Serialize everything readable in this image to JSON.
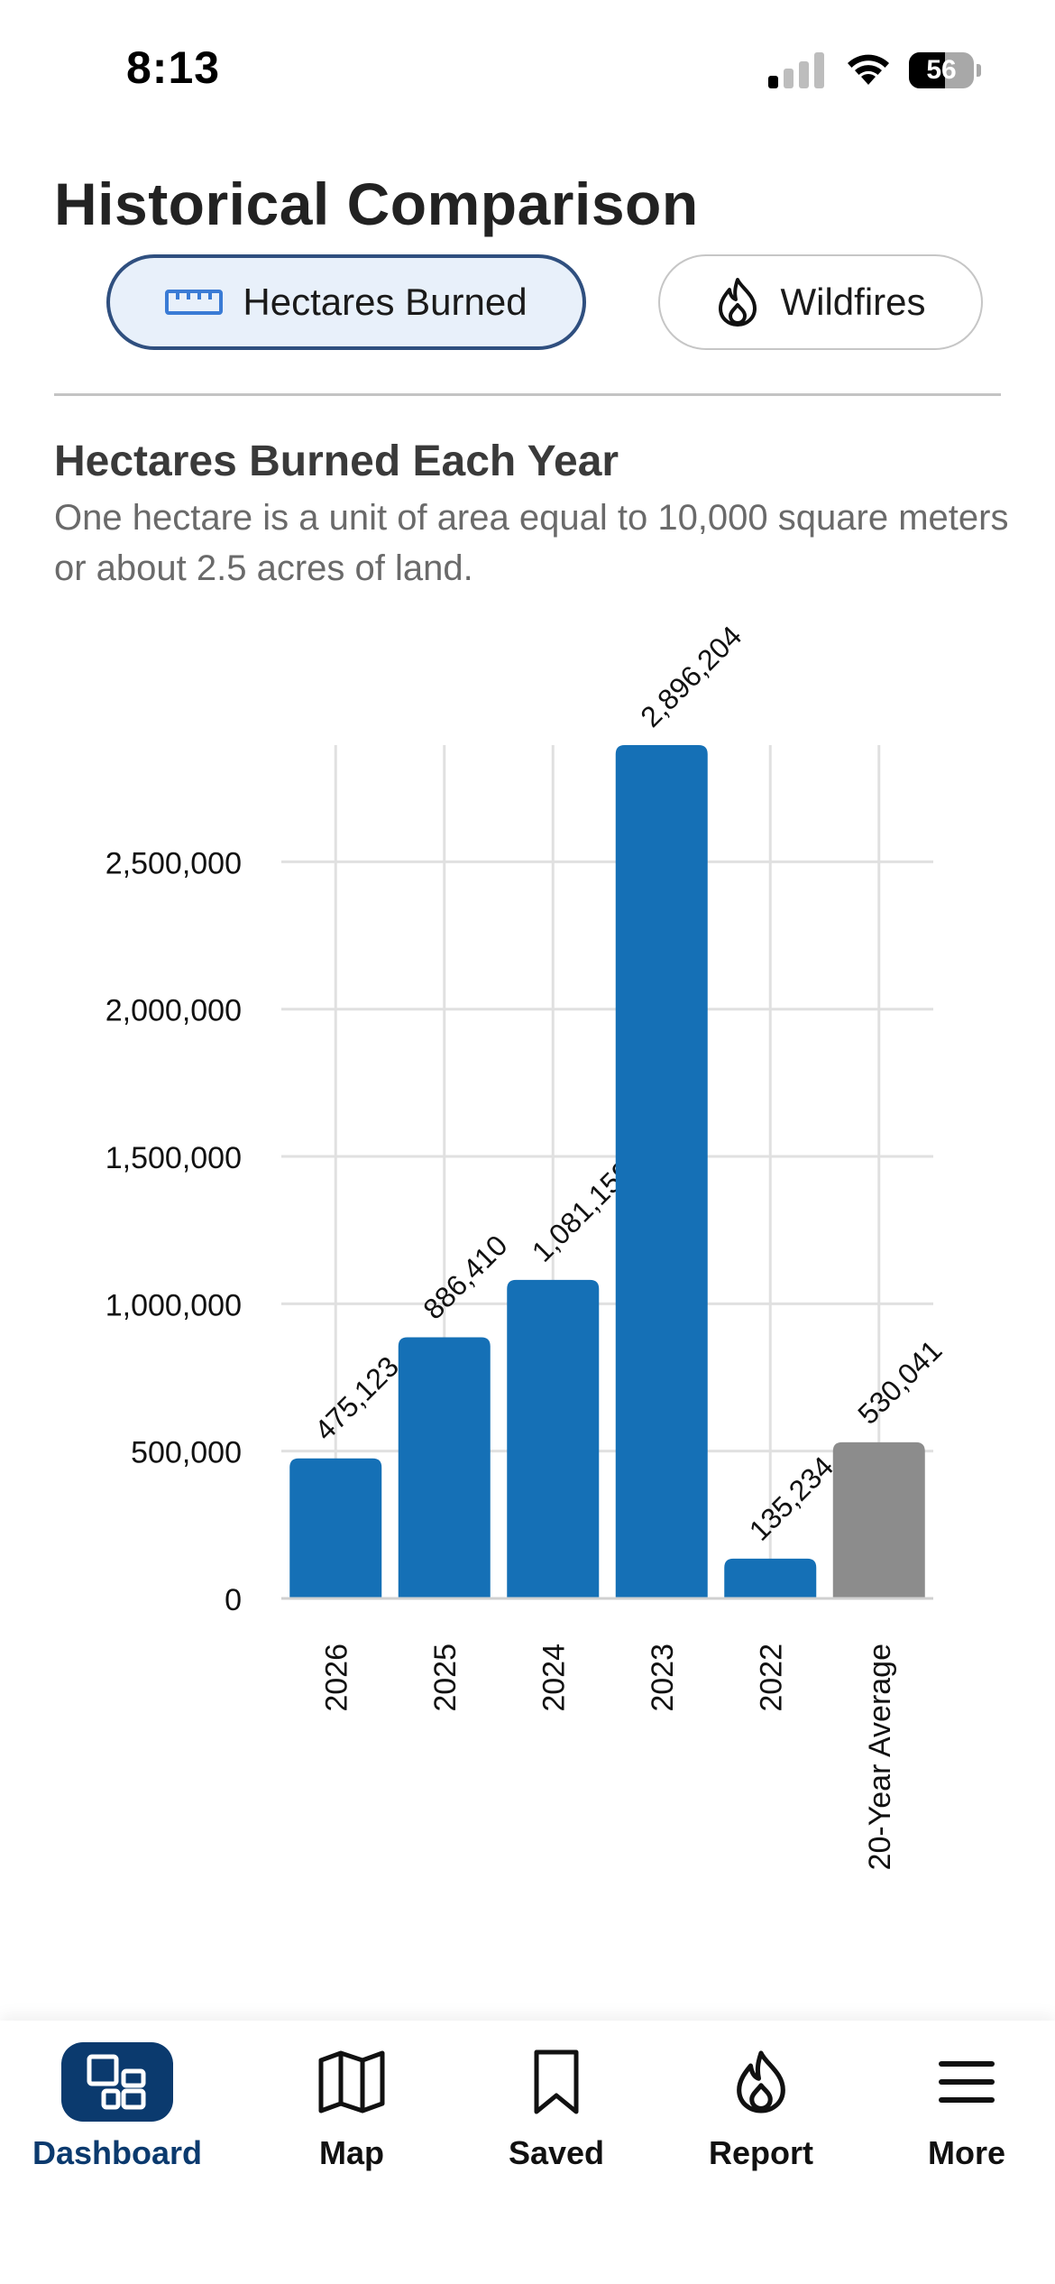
{
  "status_bar": {
    "time": "8:13",
    "signal_bars": 1,
    "battery_level": "56"
  },
  "header": {
    "title": "Historical Comparison"
  },
  "toggle": {
    "hectares_label": "Hectares Burned",
    "hectares_icon": "ruler-icon",
    "wildfires_label": "Wildfires",
    "wildfires_icon": "flame-icon",
    "selected": "hectares"
  },
  "section": {
    "title": "Hectares Burned Each Year",
    "description": "One hectare is a unit of area equal to 10,000 square meters or about 2.5 acres of land."
  },
  "chart_data": {
    "type": "bar",
    "categories": [
      "2026",
      "2025",
      "2024",
      "2023",
      "2022",
      "20-Year Average"
    ],
    "values": [
      475123,
      886410,
      1081159,
      2896204,
      135234,
      530041
    ],
    "value_labels": [
      "475,123",
      "886,410",
      "1,081,159",
      "2,896,204",
      "135,234",
      "530,041"
    ],
    "ylim": [
      0,
      2896204
    ],
    "yticks": [
      0,
      500000,
      1000000,
      1500000,
      2000000,
      2500000
    ],
    "ytick_labels": [
      "0",
      "500,000",
      "1,000,000",
      "1,500,000",
      "2,000,000",
      "2,500,000"
    ],
    "grid": true,
    "colors": {
      "year_bar": "#1570b6",
      "average_bar": "#8c8c8c",
      "grid": "#e0e0e0"
    }
  },
  "tab_bar": {
    "items": [
      {
        "label": "Dashboard",
        "icon": "dashboard-icon",
        "active": true
      },
      {
        "label": "Map",
        "icon": "map-icon",
        "active": false
      },
      {
        "label": "Saved",
        "icon": "bookmark-icon",
        "active": false
      },
      {
        "label": "Report",
        "icon": "flame-icon",
        "active": false
      },
      {
        "label": "More",
        "icon": "menu-icon",
        "active": false
      }
    ]
  }
}
